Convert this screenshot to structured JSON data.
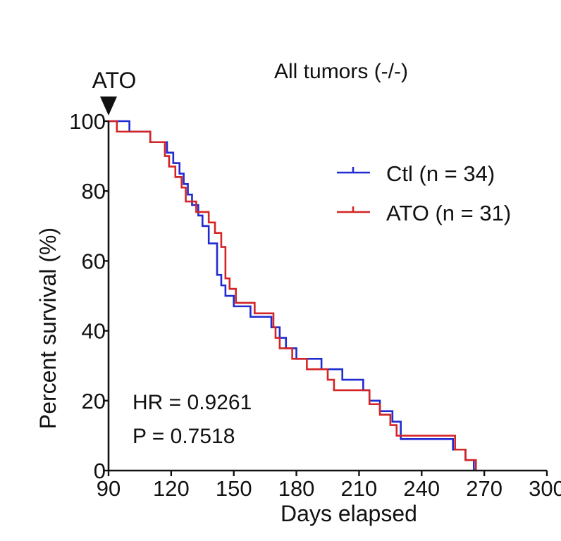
{
  "chart_data": {
    "type": "line",
    "step": true,
    "title": "All tumors (-/-)",
    "xlabel": "Days elapsed",
    "ylabel": "Percent survival (%)",
    "xlim": [
      90,
      300
    ],
    "ylim": [
      0,
      100
    ],
    "xticks": [
      "90",
      "120",
      "150",
      "180",
      "210",
      "240",
      "270",
      "300"
    ],
    "yticks": [
      "0",
      "20",
      "40",
      "60",
      "80",
      "100"
    ],
    "grid": false,
    "legend_position": "top-right",
    "colors": {
      "ctl": "#1f2bd1",
      "ato": "#d42424",
      "axis": "#111111"
    },
    "annotation": {
      "arrow_label": "ATO",
      "arrow_x": 90
    },
    "stats": {
      "hr": "HR = 0.9261",
      "p": "P = 0.7518"
    },
    "series": [
      {
        "name": "Ctl (n = 34)",
        "color": "#1f2bd1",
        "x": [
          90,
          100,
          110,
          118,
          121,
          124,
          126,
          128,
          130,
          133,
          135,
          138,
          142,
          144,
          146,
          150,
          158,
          168,
          172,
          175,
          180,
          192,
          202,
          212,
          215,
          220,
          226,
          230,
          255,
          261,
          265
        ],
        "y": [
          100,
          97,
          94,
          91,
          88,
          85,
          82,
          79,
          76,
          73,
          70,
          65,
          56,
          53,
          50,
          47,
          44,
          41,
          38,
          35,
          32,
          29,
          26,
          23,
          20,
          17,
          14,
          9,
          6,
          3,
          0
        ]
      },
      {
        "name": "ATO (n = 31)",
        "color": "#d42424",
        "x": [
          90,
          94,
          110,
          117,
          119,
          122,
          125,
          127,
          132,
          138,
          141,
          144,
          146,
          148,
          151,
          160,
          169,
          170,
          172,
          178,
          185,
          195,
          198,
          215,
          220,
          225,
          228,
          256,
          261,
          266
        ],
        "y": [
          100,
          97,
          94,
          90,
          87,
          84,
          81,
          77,
          74,
          71,
          68,
          64,
          55,
          52,
          48,
          45,
          41,
          38,
          35,
          32,
          29,
          26,
          23,
          19,
          16,
          13,
          10,
          6,
          3,
          0
        ]
      }
    ]
  }
}
